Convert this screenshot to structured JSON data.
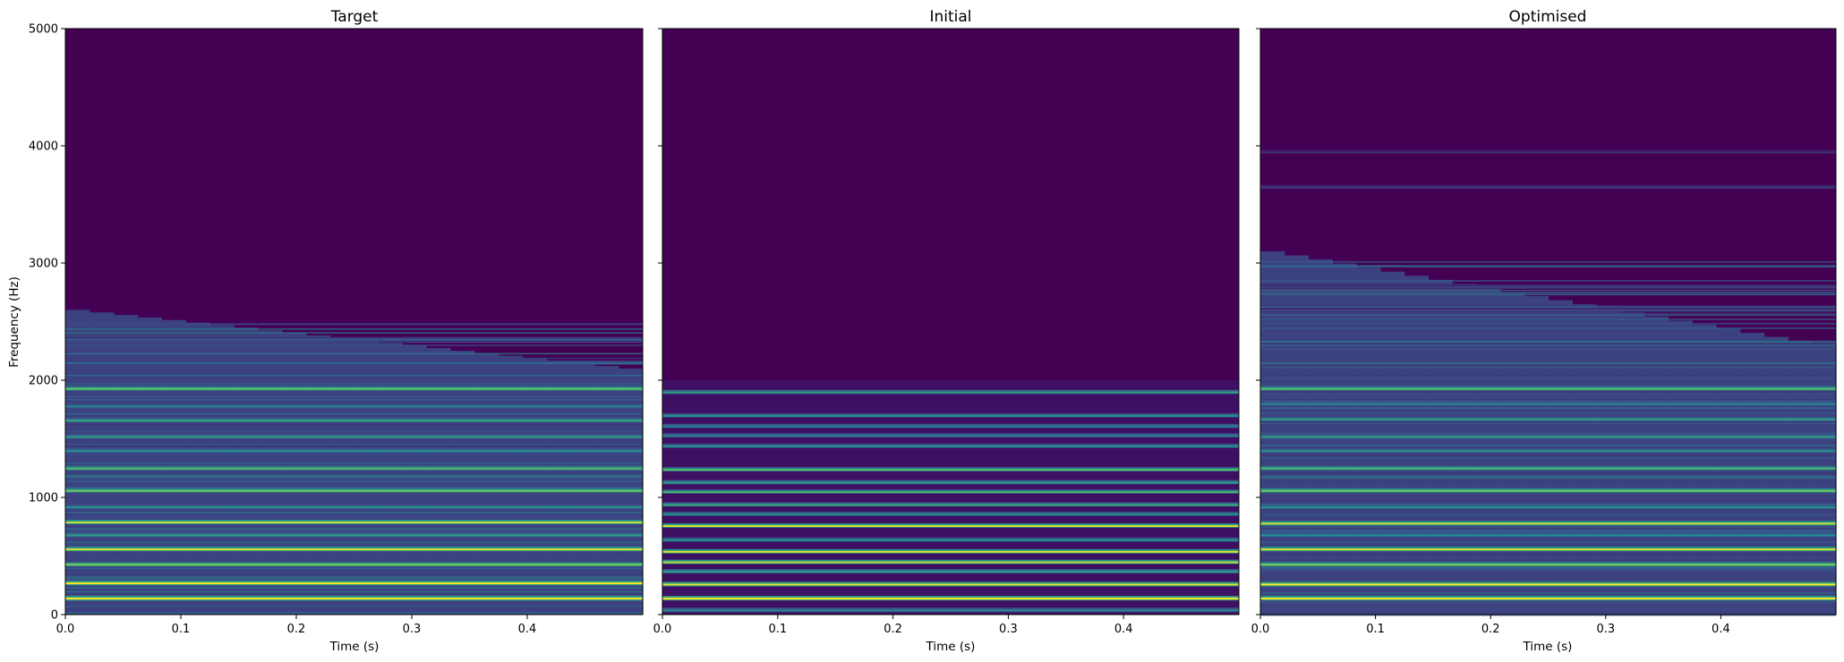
{
  "chart_data": [
    {
      "type": "heatmap",
      "title": "Target",
      "xlabel": "Time (s)",
      "ylabel": "Frequency (Hz)",
      "xlim": [
        0.0,
        0.5
      ],
      "ylim": [
        0,
        5000
      ],
      "xticks": [
        "0.0",
        "0.1",
        "0.2",
        "0.3",
        "0.4"
      ],
      "yticks": [
        "0",
        "1000",
        "2000",
        "3000",
        "4000",
        "5000"
      ],
      "colormap": "viridis",
      "content_fade_hz": [
        2600,
        2100
      ],
      "bands": [
        {
          "freq": 140,
          "level": 1.0,
          "width": 18
        },
        {
          "freq": 270,
          "level": 1.0,
          "width": 18
        },
        {
          "freq": 430,
          "level": 0.8,
          "width": 16
        },
        {
          "freq": 560,
          "level": 0.95,
          "width": 16
        },
        {
          "freq": 680,
          "level": 0.55,
          "width": 14
        },
        {
          "freq": 790,
          "level": 0.92,
          "width": 16
        },
        {
          "freq": 920,
          "level": 0.5,
          "width": 14
        },
        {
          "freq": 1060,
          "level": 0.78,
          "width": 16
        },
        {
          "freq": 1250,
          "level": 0.7,
          "width": 16
        },
        {
          "freq": 1400,
          "level": 0.5,
          "width": 14
        },
        {
          "freq": 1520,
          "level": 0.55,
          "width": 14
        },
        {
          "freq": 1660,
          "level": 0.58,
          "width": 14
        },
        {
          "freq": 1780,
          "level": 0.45,
          "width": 14
        },
        {
          "freq": 1930,
          "level": 0.75,
          "width": 16
        },
        {
          "freq": 2150,
          "level": 0.35,
          "width": 14
        },
        {
          "freq": 2350,
          "level": 0.3,
          "width": 14
        }
      ]
    },
    {
      "type": "heatmap",
      "title": "Initial",
      "xlabel": "Time (s)",
      "ylabel": "",
      "xlim": [
        0.0,
        0.5
      ],
      "ylim": [
        0,
        5000
      ],
      "xticks": [
        "0.0",
        "0.1",
        "0.2",
        "0.3",
        "0.4"
      ],
      "yticks": [],
      "colormap": "viridis",
      "content_fade_hz": [
        2000,
        2000
      ],
      "bands": [
        {
          "freq": 40,
          "level": 0.45,
          "width": 16
        },
        {
          "freq": 140,
          "level": 1.0,
          "width": 16
        },
        {
          "freq": 260,
          "level": 0.95,
          "width": 16
        },
        {
          "freq": 370,
          "level": 0.55,
          "width": 14
        },
        {
          "freq": 450,
          "level": 0.9,
          "width": 14
        },
        {
          "freq": 540,
          "level": 0.95,
          "width": 14
        },
        {
          "freq": 640,
          "level": 0.5,
          "width": 12
        },
        {
          "freq": 760,
          "level": 0.95,
          "width": 14
        },
        {
          "freq": 860,
          "level": 0.5,
          "width": 12
        },
        {
          "freq": 940,
          "level": 0.6,
          "width": 12
        },
        {
          "freq": 1050,
          "level": 0.65,
          "width": 12
        },
        {
          "freq": 1130,
          "level": 0.55,
          "width": 12
        },
        {
          "freq": 1240,
          "level": 0.7,
          "width": 12
        },
        {
          "freq": 1440,
          "level": 0.5,
          "width": 12
        },
        {
          "freq": 1530,
          "level": 0.45,
          "width": 12
        },
        {
          "freq": 1610,
          "level": 0.45,
          "width": 12
        },
        {
          "freq": 1700,
          "level": 0.5,
          "width": 12
        },
        {
          "freq": 1900,
          "level": 0.55,
          "width": 12
        }
      ]
    },
    {
      "type": "heatmap",
      "title": "Optimised",
      "xlabel": "Time (s)",
      "ylabel": "",
      "xlim": [
        0.0,
        0.5
      ],
      "ylim": [
        0,
        5000
      ],
      "xticks": [
        "0.0",
        "0.1",
        "0.2",
        "0.3",
        "0.4"
      ],
      "yticks": [],
      "colormap": "viridis",
      "content_fade_hz": [
        3100,
        2300
      ],
      "bands": [
        {
          "freq": 140,
          "level": 1.0,
          "width": 18
        },
        {
          "freq": 260,
          "level": 1.0,
          "width": 18
        },
        {
          "freq": 430,
          "level": 0.8,
          "width": 16
        },
        {
          "freq": 560,
          "level": 0.95,
          "width": 16
        },
        {
          "freq": 680,
          "level": 0.5,
          "width": 14
        },
        {
          "freq": 780,
          "level": 0.92,
          "width": 16
        },
        {
          "freq": 920,
          "level": 0.5,
          "width": 14
        },
        {
          "freq": 1060,
          "level": 0.78,
          "width": 16
        },
        {
          "freq": 1250,
          "level": 0.68,
          "width": 16
        },
        {
          "freq": 1400,
          "level": 0.5,
          "width": 14
        },
        {
          "freq": 1520,
          "level": 0.55,
          "width": 14
        },
        {
          "freq": 1670,
          "level": 0.55,
          "width": 14
        },
        {
          "freq": 1800,
          "level": 0.45,
          "width": 14
        },
        {
          "freq": 1930,
          "level": 0.72,
          "width": 16
        },
        {
          "freq": 2150,
          "level": 0.35,
          "width": 14
        },
        {
          "freq": 2300,
          "level": 0.3,
          "width": 14
        },
        {
          "freq": 2600,
          "level": 0.22,
          "width": 12
        },
        {
          "freq": 2800,
          "level": 0.2,
          "width": 12
        },
        {
          "freq": 3650,
          "level": 0.18,
          "width": 8
        },
        {
          "freq": 3950,
          "level": 0.15,
          "width": 6
        }
      ]
    }
  ]
}
